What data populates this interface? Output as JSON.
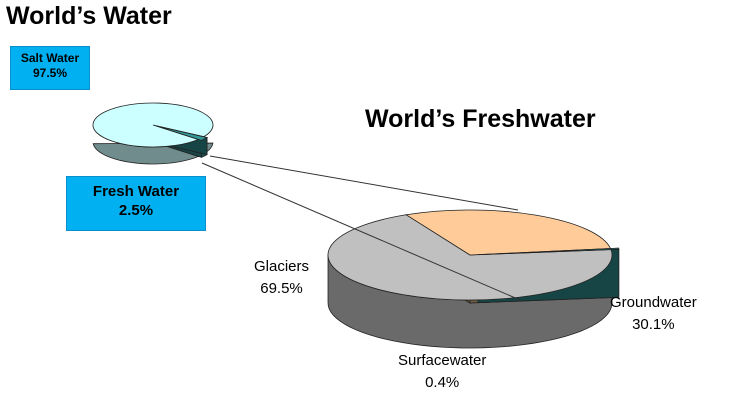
{
  "chart_data": [
    {
      "type": "pie",
      "title": "World’s Water",
      "slices": [
        {
          "name": "Salt Water",
          "value": 97.5,
          "label": "97.5%",
          "color": "#ccffff"
        },
        {
          "name": "Fresh Water",
          "value": 2.5,
          "label": "2.5%",
          "color": "#339999"
        }
      ]
    },
    {
      "type": "pie",
      "title": "World’s Freshwater",
      "slices": [
        {
          "name": "Glaciers",
          "value": 69.5,
          "label": "69.5%",
          "color": "#c0c0c0"
        },
        {
          "name": "Groundwater",
          "value": 30.1,
          "label": "30.1%",
          "color": "#ffcc99"
        },
        {
          "name": "Surfacewater",
          "value": 0.4,
          "label": "0.4%",
          "color": "#339999"
        }
      ]
    }
  ],
  "colors": {
    "callout_box": "#00b0f0",
    "connector_line": "#333333"
  }
}
